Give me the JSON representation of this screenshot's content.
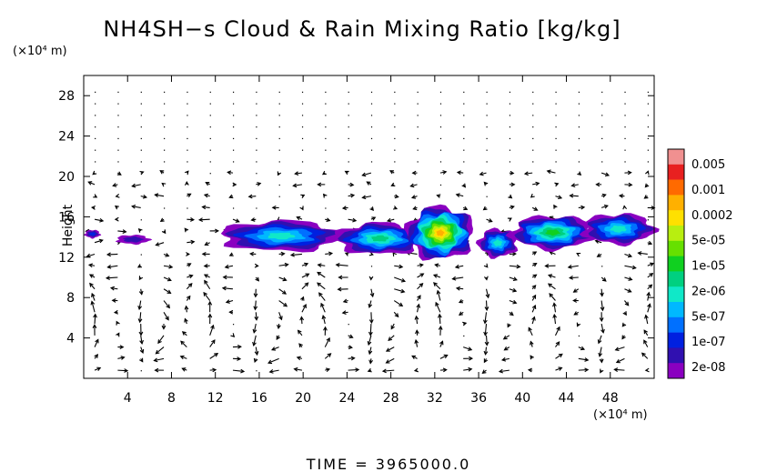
{
  "chart_data": {
    "type": "heatmap",
    "title": "NH4SH−s Cloud & Rain Mixing Ratio [kg/kg]",
    "ylabel": "Height",
    "x_scale_label": "(×10⁴ m)",
    "y_scale_label": "(×10⁴ m)",
    "xlim": [
      0,
      52
    ],
    "ylim": [
      0,
      30
    ],
    "x_ticks": [
      "4",
      "8",
      "12",
      "16",
      "20",
      "24",
      "28",
      "32",
      "36",
      "40",
      "44",
      "48"
    ],
    "y_ticks": [
      "4",
      "8",
      "12",
      "16",
      "20",
      "24",
      "28"
    ],
    "colorbar": {
      "labels": [
        "0.005",
        "0.001",
        "0.0002",
        "5e-05",
        "1e-05",
        "2e-06",
        "5e-07",
        "1e-07",
        "2e-08"
      ],
      "colors": [
        "#f09090",
        "#e82020",
        "#ff6a00",
        "#ffb000",
        "#ffe000",
        "#b8ee10",
        "#66e000",
        "#10d020",
        "#00d080",
        "#10e8c8",
        "#00b8ff",
        "#0070ff",
        "#0020e0",
        "#3010b0",
        "#8a00c0"
      ]
    },
    "clouds": [
      {
        "x": [
          0.1,
          1.5
        ],
        "y": [
          13.9,
          14.7
        ],
        "level": 2
      },
      {
        "x": [
          3.0,
          6.0
        ],
        "y": [
          13.3,
          14.2
        ],
        "level": 1
      },
      {
        "x": [
          12.5,
          23.5
        ],
        "y": [
          12.6,
          15.6
        ],
        "level": 5
      },
      {
        "x": [
          23.0,
          31.0
        ],
        "y": [
          12.3,
          15.4
        ],
        "level": 6
      },
      {
        "x": [
          29.5,
          35.5
        ],
        "y": [
          11.8,
          17.0
        ],
        "level": 11
      },
      {
        "x": [
          36.0,
          39.5
        ],
        "y": [
          12.0,
          14.8
        ],
        "level": 5
      },
      {
        "x": [
          39.0,
          46.5
        ],
        "y": [
          12.8,
          16.1
        ],
        "level": 7
      },
      {
        "x": [
          45.5,
          52.0
        ],
        "y": [
          13.3,
          16.3
        ],
        "level": 5
      }
    ]
  },
  "footer": {
    "time_text": "TIME =  3965000.0"
  }
}
